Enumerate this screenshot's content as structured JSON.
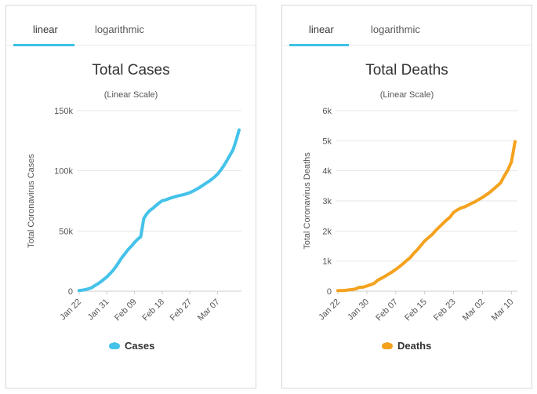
{
  "panels": [
    {
      "tabs": [
        "linear",
        "logarithmic"
      ],
      "active_tab": "linear",
      "color": "#43c2ea",
      "chart_data": {
        "type": "line",
        "title": "Total Cases",
        "subtitle": "(Linear Scale)",
        "ylabel": "Total Coronavirus Cases",
        "xlabel": "",
        "ylim": [
          0,
          150000
        ],
        "yticks": [
          0,
          50000,
          100000,
          150000
        ],
        "ytick_labels": [
          "0",
          "50k",
          "100k",
          "150k"
        ],
        "xticks": [
          "Jan 22",
          "Jan 31",
          "Feb 09",
          "Feb 18",
          "Feb 27",
          "Mar 07"
        ],
        "xtick_positions": [
          0,
          9,
          18,
          27,
          36,
          45
        ],
        "x_count": 53,
        "grid": true,
        "legend_position": "bottom",
        "series": [
          {
            "name": "Cases",
            "values": [
              580,
              850,
              1300,
              2000,
              2800,
              4500,
              6000,
              7800,
              9800,
              11900,
              14500,
              17300,
              20600,
              24500,
              28300,
              31500,
              34900,
              37500,
              40500,
              43100,
              45200,
              60300,
              64400,
              67100,
              69000,
              71200,
              73300,
              75200,
              75700,
              76700,
              77600,
              78400,
              79100,
              79700,
              80300,
              81000,
              81900,
              83100,
              84500,
              85900,
              87600,
              89300,
              91000,
              92800,
              94900,
              97300,
              100500,
              104200,
              108400,
              112800,
              117400,
              125000,
              134000
            ]
          }
        ]
      }
    },
    {
      "tabs": [
        "linear",
        "logarithmic"
      ],
      "active_tab": "linear",
      "color": "#f4a21e",
      "chart_data": {
        "type": "line",
        "title": "Total Deaths",
        "subtitle": "(Linear Scale)",
        "ylabel": "Total Coronavirus Deaths",
        "xlabel": "",
        "ylim": [
          0,
          6000
        ],
        "yticks": [
          0,
          1000,
          2000,
          3000,
          4000,
          5000,
          6000
        ],
        "ytick_labels": [
          "0",
          "1k",
          "2k",
          "3k",
          "4k",
          "5k",
          "6k"
        ],
        "xticks": [
          "Jan 22",
          "Jan 30",
          "Feb 07",
          "Feb 15",
          "Feb 23",
          "Mar 02",
          "Mar 10"
        ],
        "xtick_positions": [
          0,
          8,
          16,
          24,
          32,
          40,
          48
        ],
        "x_count": 50,
        "grid": true,
        "legend_position": "bottom",
        "series": [
          {
            "name": "Deaths",
            "values": [
              17,
              18,
              26,
              42,
              56,
              82,
              131,
              133,
              171,
              213,
              259,
              362,
              426,
              492,
              565,
              638,
              724,
              813,
              910,
              1018,
              1115,
              1261,
              1383,
              1526,
              1669,
              1775,
              1873,
              2009,
              2126,
              2247,
              2360,
              2460,
              2618,
              2699,
              2763,
              2800,
              2858,
              2923,
              2977,
              3050,
              3117,
              3202,
              3285,
              3387,
              3494,
              3599,
              3827,
              4025,
              4296,
              4972
            ]
          }
        ]
      }
    }
  ]
}
